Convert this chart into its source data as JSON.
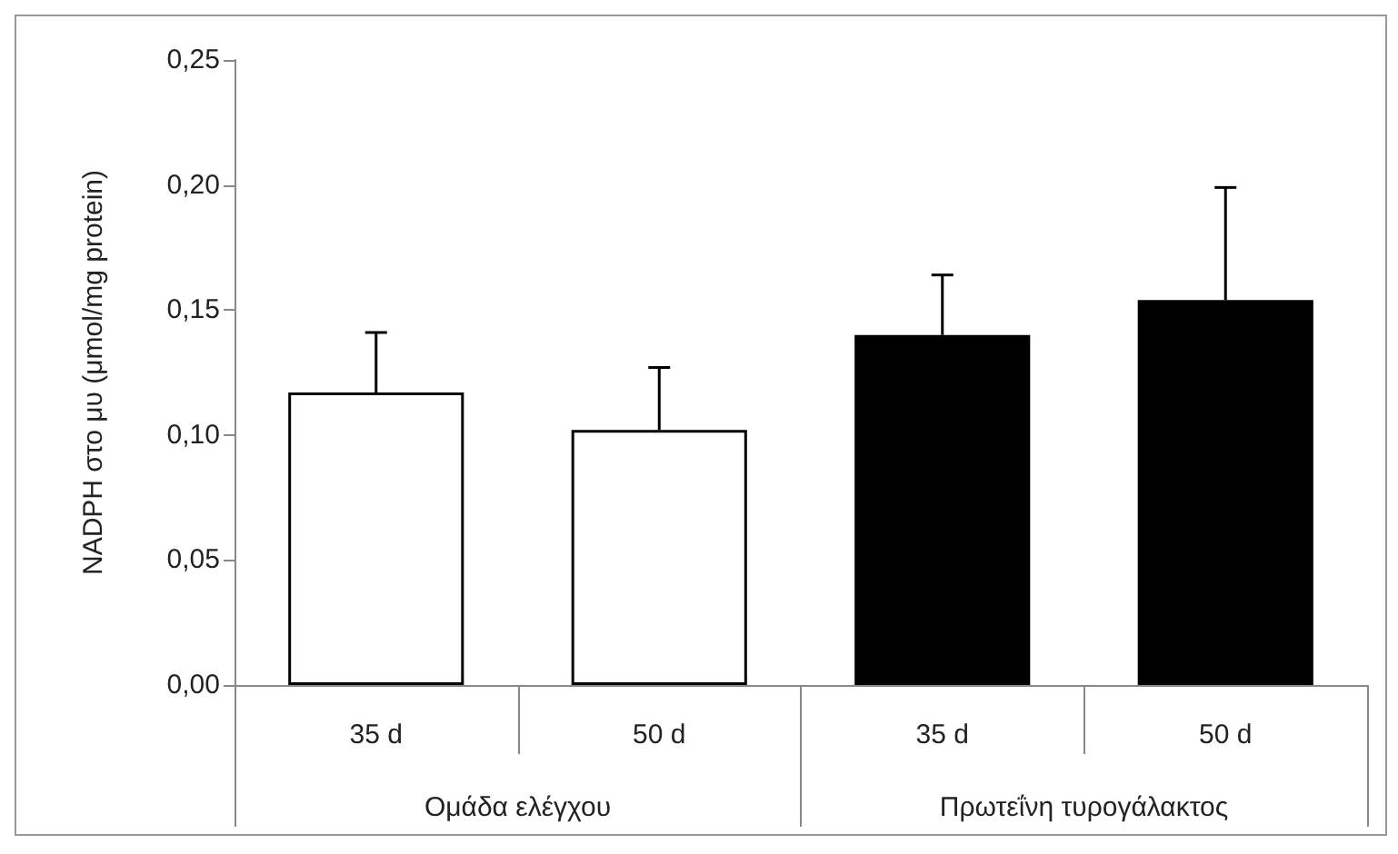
{
  "chart_data": {
    "type": "bar",
    "ylabel": "NADPH στο μυ (μmol/mg protein)",
    "categories": [
      "35 d",
      "50 d",
      "35 d",
      "50 d"
    ],
    "values": [
      0.117,
      0.102,
      0.14,
      0.154
    ],
    "colors": [
      "#ffffff",
      "#ffffff",
      "#000000",
      "#000000"
    ],
    "errors": [
      [
        0.117,
        0.141
      ],
      [
        0.102,
        0.127
      ],
      [
        0.14,
        0.164
      ],
      [
        0.154,
        0.199
      ]
    ],
    "ylim": [
      0,
      0.25
    ],
    "yticks": [
      {
        "value": 0,
        "label": "0,00"
      },
      {
        "value": 0.05,
        "label": "0,05"
      },
      {
        "value": 0.1,
        "label": "0,10"
      },
      {
        "value": 0.15,
        "label": "0,15"
      },
      {
        "value": 0.2,
        "label": "0,20"
      },
      {
        "value": 0.25,
        "label": "0,25"
      }
    ],
    "annotations": [
      "Ομάδα ελέγχου",
      "Πρωτεΐνη τυρογάλακτος"
    ],
    "grid": false
  }
}
